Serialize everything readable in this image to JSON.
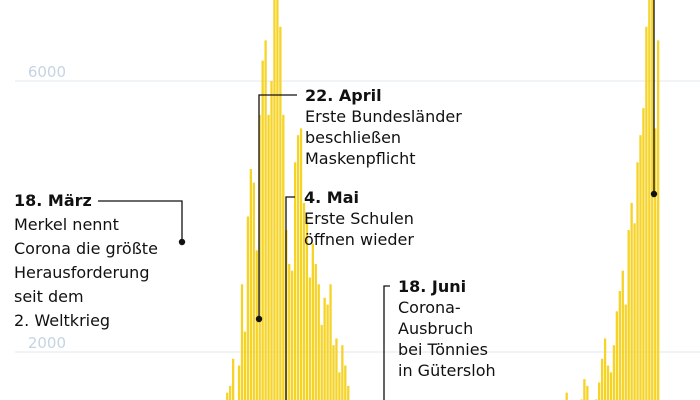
{
  "chart_data": {
    "type": "bar",
    "title": "",
    "xlabel": "",
    "ylabel": "",
    "ylim": [
      0,
      7900
    ],
    "grid": true,
    "y_ticks": [
      2000,
      6000
    ],
    "colors": {
      "bar": "#f5d327",
      "grid": "#e1e8ef",
      "tick": "#c3d4e3",
      "annotation": "#111111"
    },
    "values": [
      130,
      120,
      200,
      150,
      110,
      180,
      140,
      160,
      120,
      190,
      150,
      170,
      130,
      110,
      160,
      140,
      500,
      300,
      600,
      1400,
      1500,
      1900,
      1200,
      1800,
      3000,
      2300,
      4000,
      4700,
      4500,
      3500,
      5500,
      6300,
      6600,
      5500,
      6000,
      7200,
      7400,
      6800,
      5500,
      3800,
      3300,
      3200,
      4800,
      5200,
      5300,
      4200,
      4000,
      3100,
      3600,
      3300,
      3000,
      2400,
      2800,
      2700,
      3000,
      2100,
      2200,
      1700,
      2100,
      1800,
      1500,
      1200,
      1200,
      1000,
      900,
      1100,
      750,
      850,
      700,
      680,
      400,
      450,
      380,
      460,
      400,
      240,
      330,
      300,
      250,
      230,
      210,
      180,
      250,
      260,
      190,
      200,
      170,
      160,
      180,
      150,
      240,
      280,
      220,
      260,
      300,
      380,
      200,
      230,
      240,
      210,
      330,
      350,
      300,
      280,
      310,
      520,
      640,
      580,
      700,
      630,
      560,
      480,
      600,
      520,
      680,
      720,
      600,
      780,
      640,
      570,
      860,
      700,
      600,
      660,
      720,
      780,
      820,
      1000,
      760,
      700,
      880,
      940,
      1000,
      1200,
      1400,
      1050,
      950,
      1000,
      1100,
      1300,
      1600,
      1500,
      1250,
      1200,
      1300,
      1550,
      1900,
      2200,
      1800,
      1700,
      2100,
      2600,
      2900,
      3200,
      2700,
      3800,
      4200,
      3900,
      4800,
      5200,
      5600,
      6800,
      7400,
      7700,
      5300,
      6600
    ],
    "annotations": [
      {
        "date": "18. März",
        "lines": [
          "Merkel nennt",
          "Corona die größte",
          "Herausforderung",
          "seit dem",
          "2. Weltkrieg"
        ]
      },
      {
        "date": "22. April",
        "lines": [
          "Erste Bundesländer",
          "beschließen",
          "Maskenpflicht"
        ]
      },
      {
        "date": "4. Mai",
        "lines": [
          "Erste Schulen",
          "öffnen wieder"
        ]
      },
      {
        "date": "18. Juni",
        "lines": [
          "Corona-",
          "Ausbruch",
          "bei Tönnies",
          "in Gütersloh"
        ]
      }
    ]
  }
}
